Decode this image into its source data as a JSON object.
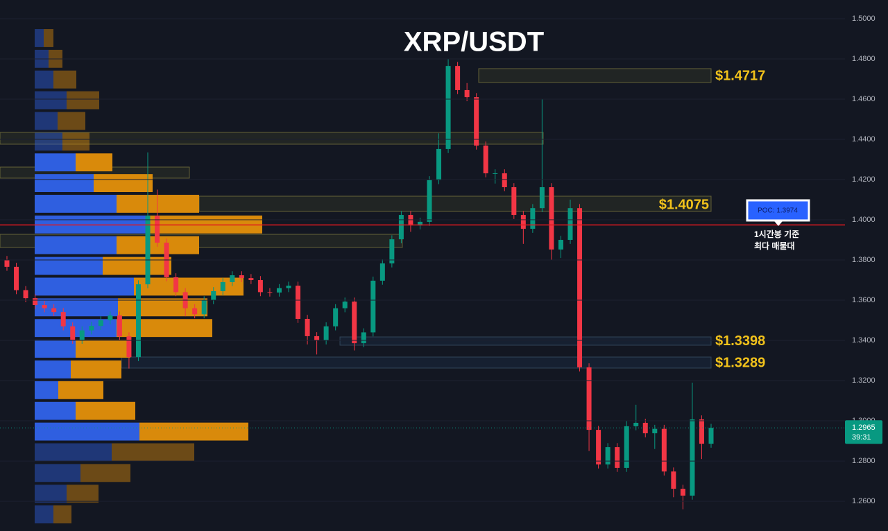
{
  "chart_data": {
    "type": "candlestick",
    "title": "XRP/USDT",
    "ylim": [
      1.2452,
      1.5093
    ],
    "yticks": [
      {
        "value": 1.5,
        "label": "1.5000"
      },
      {
        "value": 1.48,
        "label": "1.4800"
      },
      {
        "value": 1.46,
        "label": "1.4600"
      },
      {
        "value": 1.44,
        "label": "1.4400"
      },
      {
        "value": 1.42,
        "label": "1.4200"
      },
      {
        "value": 1.4,
        "label": "1.4000"
      },
      {
        "value": 1.38,
        "label": "1.3800"
      },
      {
        "value": 1.36,
        "label": "1.3600"
      },
      {
        "value": 1.34,
        "label": "1.3400"
      },
      {
        "value": 1.32,
        "label": "1.3200"
      },
      {
        "value": 1.3,
        "label": "1.3000"
      },
      {
        "value": 1.28,
        "label": "1.2800"
      },
      {
        "value": 1.26,
        "label": "1.2600"
      }
    ],
    "up_color": "#089981",
    "down_color": "#f23645",
    "candles": {
      "open": [
        1.38,
        1.3766,
        1.365,
        1.361,
        1.3576,
        1.356,
        1.3541,
        1.347,
        1.3403,
        1.345,
        1.3472,
        1.35,
        1.3524,
        1.342,
        1.3317,
        1.3679,
        1.402,
        1.3886,
        1.3714,
        1.364,
        1.356,
        1.353,
        1.36,
        1.3645,
        1.369,
        1.3724,
        1.371,
        1.37,
        1.364,
        1.3638,
        1.366,
        1.3672,
        1.3507,
        1.3421,
        1.34,
        1.347,
        1.356,
        1.3593,
        1.3386,
        1.344,
        1.3697,
        1.3783,
        1.3903,
        1.4024,
        1.3972,
        1.399,
        1.4197,
        1.4352,
        1.4765,
        1.4645,
        1.461,
        1.4369,
        1.4231,
        1.4231,
        1.4162,
        1.4024,
        1.3955,
        1.4058,
        1.4162,
        1.3852,
        1.39,
        1.4058,
        1.3266,
        1.2955,
        1.2783,
        1.2869,
        1.2766,
        1.2973,
        1.299,
        1.2938,
        1.296,
        1.2748,
        1.2662,
        1.2628,
        1.3007,
        1.2886
      ],
      "high": [
        1.382,
        1.3786,
        1.367,
        1.363,
        1.3596,
        1.358,
        1.3561,
        1.349,
        1.347,
        1.3492,
        1.352,
        1.3544,
        1.3544,
        1.344,
        1.3699,
        1.4335,
        1.415,
        1.3906,
        1.3734,
        1.366,
        1.358,
        1.362,
        1.3665,
        1.371,
        1.3744,
        1.3744,
        1.373,
        1.372,
        1.366,
        1.368,
        1.3692,
        1.3692,
        1.3527,
        1.3441,
        1.349,
        1.358,
        1.3613,
        1.3613,
        1.346,
        1.3717,
        1.3803,
        1.3923,
        1.4044,
        1.4044,
        1.401,
        1.4217,
        1.443,
        1.48,
        1.4785,
        1.468,
        1.463,
        1.4389,
        1.4251,
        1.4251,
        1.4182,
        1.4044,
        1.4078,
        1.46,
        1.4182,
        1.392,
        1.41,
        1.4078,
        1.3286,
        1.2975,
        1.2889,
        1.2889,
        1.3,
        1.308,
        1.301,
        1.298,
        1.298,
        1.2768,
        1.2682,
        1.319,
        1.3027,
        1.2985
      ],
      "low": [
        1.3746,
        1.363,
        1.359,
        1.3556,
        1.354,
        1.3521,
        1.345,
        1.3383,
        1.3383,
        1.343,
        1.3452,
        1.348,
        1.34,
        1.326,
        1.3297,
        1.3659,
        1.3866,
        1.3694,
        1.362,
        1.352,
        1.351,
        1.351,
        1.358,
        1.3625,
        1.367,
        1.369,
        1.368,
        1.362,
        1.3618,
        1.3618,
        1.364,
        1.3487,
        1.338,
        1.333,
        1.338,
        1.345,
        1.354,
        1.335,
        1.3366,
        1.342,
        1.3677,
        1.3763,
        1.3883,
        1.394,
        1.3952,
        1.397,
        1.4177,
        1.4332,
        1.4625,
        1.459,
        1.4349,
        1.4211,
        1.418,
        1.4142,
        1.4004,
        1.388,
        1.3935,
        1.4038,
        1.38,
        1.381,
        1.388,
        1.3246,
        1.285,
        1.2763,
        1.2763,
        1.2746,
        1.2746,
        1.2953,
        1.2918,
        1.286,
        1.2728,
        1.262,
        1.256,
        1.2608,
        1.281,
        1.2866
      ],
      "close": [
        1.3766,
        1.365,
        1.361,
        1.3576,
        1.356,
        1.3541,
        1.347,
        1.3403,
        1.345,
        1.3472,
        1.35,
        1.3524,
        1.342,
        1.3317,
        1.3679,
        1.402,
        1.3886,
        1.3714,
        1.364,
        1.356,
        1.353,
        1.36,
        1.3645,
        1.369,
        1.3724,
        1.371,
        1.37,
        1.364,
        1.3638,
        1.366,
        1.3672,
        1.3507,
        1.3421,
        1.34,
        1.347,
        1.356,
        1.3593,
        1.3386,
        1.344,
        1.3697,
        1.3783,
        1.3903,
        1.4024,
        1.3972,
        1.399,
        1.4197,
        1.4352,
        1.4765,
        1.4645,
        1.461,
        1.4369,
        1.4231,
        1.4231,
        1.4162,
        1.4024,
        1.3955,
        1.4058,
        1.4162,
        1.3852,
        1.39,
        1.4058,
        1.3266,
        1.2955,
        1.2783,
        1.2869,
        1.2766,
        1.2973,
        1.299,
        1.2938,
        1.296,
        1.2748,
        1.2662,
        1.2628,
        1.3007,
        1.2886,
        1.2965
      ]
    },
    "volume_profile": {
      "bins": [
        1.4955,
        1.4852,
        1.4749,
        1.4646,
        1.4543,
        1.444,
        1.4337,
        1.4234,
        1.4131,
        1.4028,
        1.3925,
        1.3822,
        1.3719,
        1.3616,
        1.3513,
        1.341,
        1.3307,
        1.3204,
        1.3101,
        1.2998,
        1.2895,
        1.2792,
        1.2689,
        1.2586,
        1.2483
      ],
      "buy": [
        13,
        20,
        27,
        46,
        33,
        40,
        59,
        85,
        118,
        163,
        118,
        98,
        143,
        120,
        118,
        59,
        52,
        34,
        59,
        151,
        111,
        66,
        46,
        27
      ],
      "sell": [
        14,
        20,
        33,
        47,
        40,
        39,
        53,
        85,
        119,
        165,
        119,
        99,
        158,
        129,
        138,
        79,
        73,
        65,
        86,
        157,
        119,
        72,
        46,
        26
      ],
      "buy_color": "#2f5fe0",
      "sell_color": "#d98a0b"
    },
    "poc": {
      "value": 1.3974,
      "label": "POC: 1.3974",
      "color": "#e0191f"
    },
    "poc_note": [
      "1시간봉 기준",
      "최다 매물대"
    ],
    "levels": [
      {
        "value": 1.4717,
        "label": "$1.4717"
      },
      {
        "value": 1.4075,
        "label": "$1.4075"
      },
      {
        "value": 1.3398,
        "label": "$1.3398"
      },
      {
        "value": 1.3289,
        "label": "$1.3289"
      }
    ],
    "last_price": 1.2965,
    "countdown": "39:31"
  }
}
